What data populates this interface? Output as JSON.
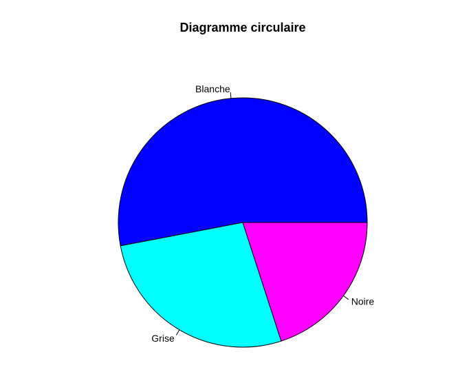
{
  "chart_data": {
    "type": "pie",
    "title": "Diagramme circulaire",
    "categories": [
      "Blanche",
      "Grise",
      "Noire"
    ],
    "values": [
      53,
      27,
      20
    ],
    "colors": [
      "#0000ff",
      "#00ffff",
      "#ff00ff"
    ],
    "start_angle_deg": 0,
    "direction": "counterclockwise",
    "border_color": "#000000"
  }
}
